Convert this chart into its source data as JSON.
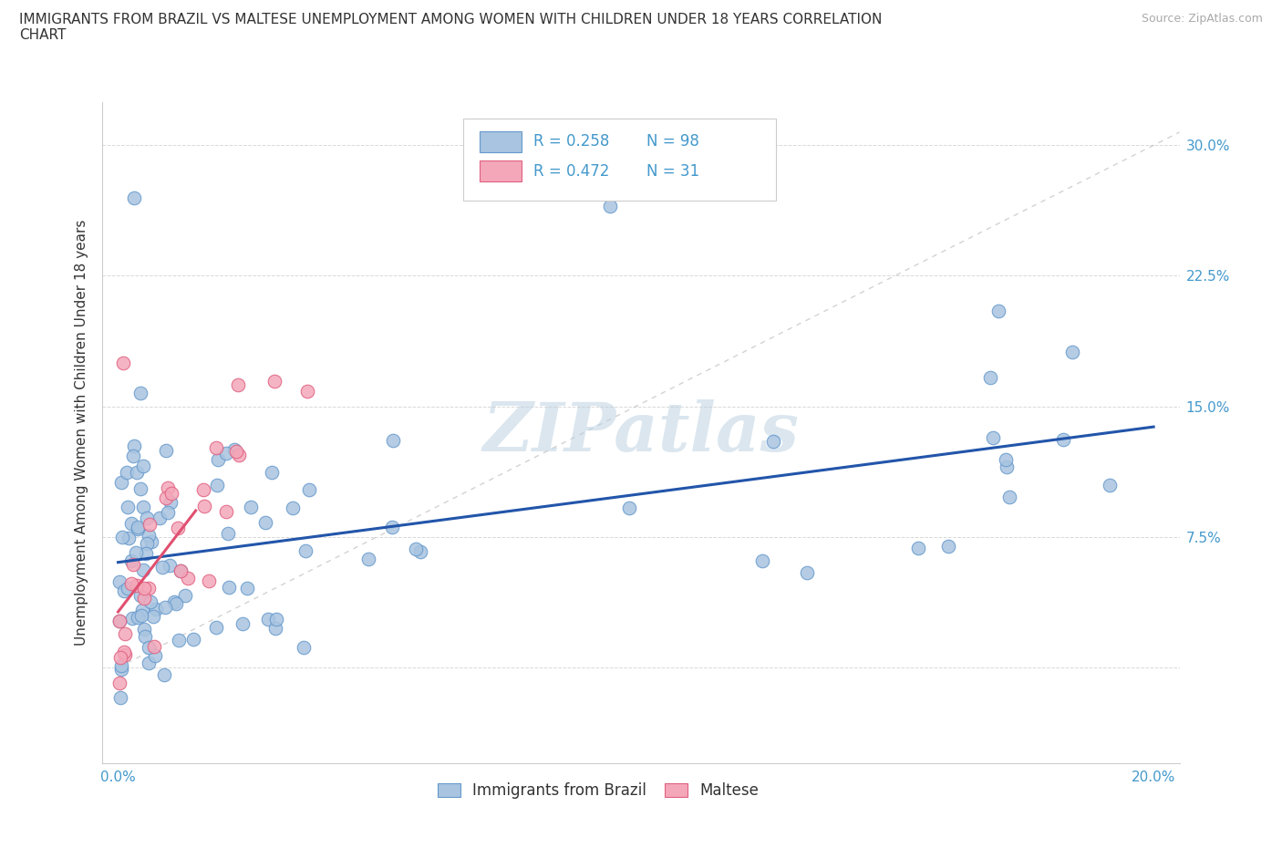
{
  "title": "IMMIGRANTS FROM BRAZIL VS MALTESE UNEMPLOYMENT AMONG WOMEN WITH CHILDREN UNDER 18 YEARS CORRELATION\nCHART",
  "source": "Source: ZipAtlas.com",
  "ylabel": "Unemployment Among Women with Children Under 18 years",
  "brazil_color": "#a8c4e0",
  "maltese_color": "#f4a7b9",
  "brazil_edge": "#6699cc",
  "maltese_edge": "#e06080",
  "trend_brazil_color": "#2255aa",
  "trend_maltese_color": "#e05070",
  "diag_color": "#c0c0c0",
  "legend_R1": "R = 0.258",
  "legend_N1": "N = 98",
  "legend_R2": "R = 0.472",
  "legend_N2": "N = 31",
  "watermark": "ZIPatlas",
  "background_color": "#ffffff",
  "grid_color": "#d8d8d8",
  "ytick_color": "#4499cc",
  "xtick_color": "#4499cc"
}
